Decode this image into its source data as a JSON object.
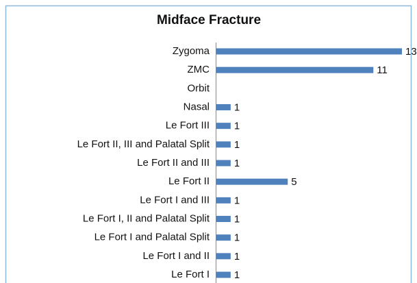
{
  "chart_data": {
    "type": "barh",
    "title": "Midface Fracture",
    "categories": [
      "Zygoma",
      "ZMC",
      "Orbit",
      "Nasal",
      "Le Fort III",
      "Le Fort II, III and Palatal Split",
      "Le Fort II and III",
      "Le Fort II",
      "Le Fort I and III",
      "Le Fort I, II and Palatal Split",
      "Le Fort I and Palatal Split",
      "Le Fort I and II",
      "Le Fort I"
    ],
    "values": [
      13,
      11,
      null,
      1,
      1,
      1,
      1,
      5,
      1,
      1,
      1,
      1,
      1
    ],
    "color": "#4f81bd"
  }
}
